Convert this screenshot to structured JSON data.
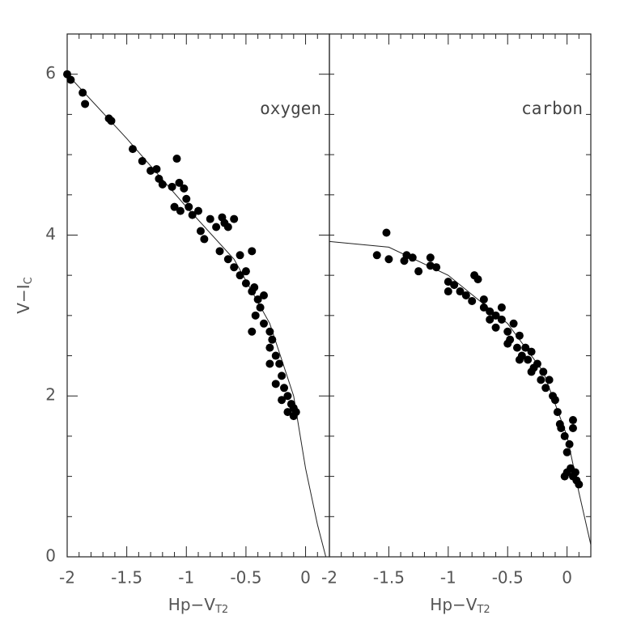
{
  "chart_data": [
    {
      "type": "scatter",
      "annotation": "oxygen",
      "xlabel": "Hp−V",
      "xlabel_sub": "T2",
      "ylabel": "V−I",
      "ylabel_sub": "C",
      "xlim": [
        -2,
        0.2
      ],
      "ylim": [
        0,
        6.5
      ],
      "xticks": [
        -2,
        -1.5,
        -1,
        -0.5,
        0
      ],
      "yticks": [
        0,
        2,
        4,
        6
      ],
      "xticks_minor": [
        -1.9,
        -1.8,
        -1.7,
        -1.6,
        -1.4,
        -1.3,
        -1.2,
        -1.1,
        -0.9,
        -0.8,
        -0.7,
        -0.6,
        -0.4,
        -0.3,
        -0.2,
        -0.1,
        0.1
      ],
      "yticks_minor": [
        0.5,
        1,
        1.5,
        2.5,
        3,
        3.5,
        4.5,
        5,
        5.5,
        6.5
      ],
      "color": "#000000",
      "x": [
        -2.0,
        -1.97,
        -1.87,
        -1.85,
        -1.65,
        -1.63,
        -1.45,
        -1.37,
        -1.3,
        -1.25,
        -1.23,
        -1.2,
        -1.12,
        -1.08,
        -1.06,
        -1.02,
        -1.0,
        -0.98,
        -1.1,
        -1.05,
        -0.95,
        -0.9,
        -0.88,
        -0.85,
        -0.8,
        -0.75,
        -0.7,
        -0.68,
        -0.65,
        -0.6,
        -0.72,
        -0.65,
        -0.6,
        -0.55,
        -0.5,
        -0.45,
        -0.5,
        -0.45,
        -0.4,
        -0.38,
        -0.42,
        -0.35,
        -0.45,
        -0.3,
        -0.3,
        -0.28,
        -0.25,
        -0.22,
        -0.3,
        -0.2,
        -0.25,
        -0.18,
        -0.15,
        -0.2,
        -0.12,
        -0.15,
        -0.1,
        -0.08,
        -0.1,
        -0.35,
        -0.43,
        -0.55
      ],
      "y": [
        6.0,
        5.93,
        5.77,
        5.63,
        5.45,
        5.42,
        5.07,
        4.92,
        4.8,
        4.82,
        4.7,
        4.63,
        4.6,
        4.95,
        4.65,
        4.58,
        4.45,
        4.35,
        4.35,
        4.3,
        4.25,
        4.3,
        4.05,
        3.95,
        4.2,
        4.1,
        4.22,
        4.15,
        4.1,
        4.2,
        3.8,
        3.7,
        3.6,
        3.75,
        3.55,
        3.8,
        3.4,
        3.3,
        3.2,
        3.1,
        3.0,
        2.9,
        2.8,
        2.8,
        2.6,
        2.7,
        2.5,
        2.4,
        2.4,
        2.25,
        2.15,
        2.1,
        2.0,
        1.95,
        1.9,
        1.8,
        1.85,
        1.8,
        1.75,
        3.25,
        3.35,
        3.5
      ],
      "fit": {
        "x": [
          -2,
          -1.5,
          -1,
          -0.6,
          -0.3,
          -0.1,
          0,
          0.1,
          0.17
        ],
        "y": [
          6.0,
          5.2,
          4.35,
          3.7,
          2.9,
          2.0,
          1.1,
          0.4,
          0
        ]
      }
    },
    {
      "type": "scatter",
      "annotation": "carbon",
      "xlabel": "Hp−V",
      "xlabel_sub": "T2",
      "xlim": [
        -2,
        0.2
      ],
      "ylim": [
        0,
        6.5
      ],
      "xticks": [
        -2,
        -1.5,
        -1,
        -0.5,
        0
      ],
      "xticks_minor": [
        -1.9,
        -1.8,
        -1.7,
        -1.6,
        -1.4,
        -1.3,
        -1.2,
        -1.1,
        -0.9,
        -0.8,
        -0.7,
        -0.6,
        -0.4,
        -0.3,
        -0.2,
        -0.1,
        0.1
      ],
      "yticks_minor": [
        0.5,
        1,
        1.5,
        2,
        2.5,
        3,
        3.5,
        4,
        4.5,
        5,
        5.5,
        6,
        6.5
      ],
      "color": "#000000",
      "x": [
        -1.6,
        -1.52,
        -1.5,
        -1.37,
        -1.35,
        -1.3,
        -1.25,
        -1.15,
        -1.15,
        -1.1,
        -1.0,
        -1.0,
        -0.95,
        -0.9,
        -0.85,
        -0.8,
        -0.78,
        -0.75,
        -0.7,
        -0.65,
        -0.6,
        -0.6,
        -0.55,
        -0.5,
        -0.5,
        -0.48,
        -0.45,
        -0.42,
        -0.4,
        -0.38,
        -0.35,
        -0.33,
        -0.3,
        -0.28,
        -0.25,
        -0.22,
        -0.2,
        -0.18,
        -0.15,
        -0.12,
        -0.1,
        -0.08,
        -0.06,
        -0.05,
        -0.02,
        0.0,
        0.02,
        0.05,
        0.05,
        0.0,
        0.03,
        0.05,
        0.08,
        0.1,
        0.07,
        -0.02,
        -0.55,
        -0.65,
        -0.7,
        -0.3,
        -0.4
      ],
      "y": [
        3.75,
        4.03,
        3.7,
        3.68,
        3.75,
        3.72,
        3.55,
        3.72,
        3.62,
        3.6,
        3.42,
        3.3,
        3.38,
        3.3,
        3.25,
        3.18,
        3.5,
        3.45,
        3.2,
        3.05,
        3.0,
        2.85,
        2.95,
        2.8,
        2.65,
        2.7,
        2.9,
        2.6,
        2.75,
        2.5,
        2.6,
        2.45,
        2.55,
        2.35,
        2.4,
        2.2,
        2.3,
        2.1,
        2.2,
        2.0,
        1.95,
        1.8,
        1.65,
        1.6,
        1.5,
        1.3,
        1.4,
        1.7,
        1.6,
        1.05,
        1.1,
        1.0,
        0.95,
        0.9,
        1.05,
        1.0,
        3.1,
        2.95,
        3.1,
        2.3,
        2.45
      ],
      "fit": {
        "x": [
          -2,
          -1.5,
          -1,
          -0.5,
          -0.2,
          0,
          0.1,
          0.2
        ],
        "y": [
          3.92,
          3.85,
          3.5,
          2.9,
          2.3,
          1.5,
          0.8,
          0.15
        ]
      }
    }
  ]
}
